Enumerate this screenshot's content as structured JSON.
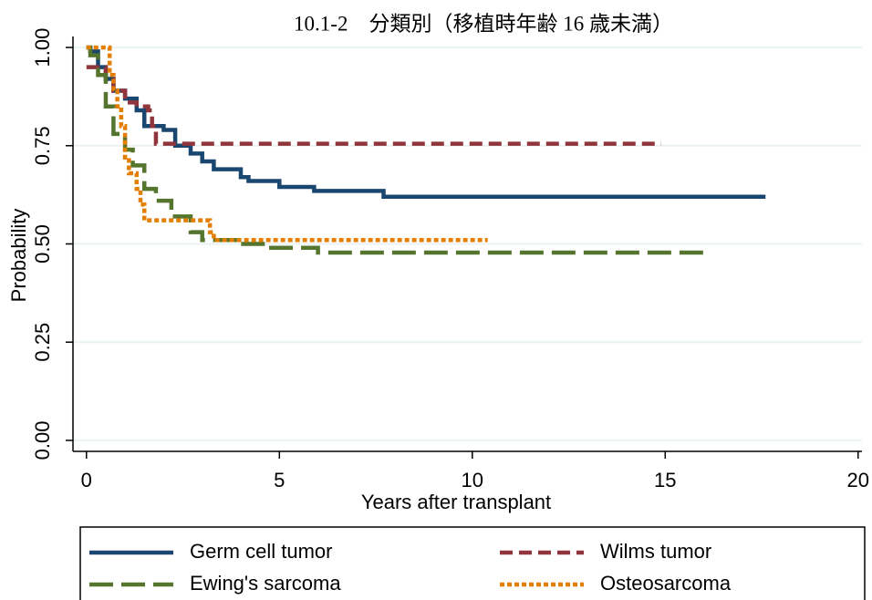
{
  "chart_data": {
    "type": "line",
    "step": true,
    "title": "10.1-2　分類別（移植時年齢 16 歳未満）",
    "x_label": "Years after transplant",
    "y_label": "Probability",
    "xlim": [
      -0.35,
      20.1
    ],
    "ylim": [
      -0.028,
      1.028
    ],
    "xticks": [
      0,
      5,
      10,
      15,
      20
    ],
    "yticks": [
      {
        "value": 0,
        "label": "0.00"
      },
      {
        "value": 0.25,
        "label": "0.25"
      },
      {
        "value": 0.5,
        "label": "0.50"
      },
      {
        "value": 0.75,
        "label": "0.75"
      },
      {
        "value": 1,
        "label": "1.00"
      }
    ],
    "grid": true,
    "series": [
      {
        "name": "Germ cell tumor",
        "color": "#1a476f",
        "dash": "solid",
        "x": [
          0,
          0.1,
          0.3,
          0.5,
          0.7,
          1.0,
          1.3,
          1.5,
          2.0,
          2.3,
          2.7,
          3.0,
          3.3,
          4.0,
          4.2,
          5.0,
          5.9,
          7.7,
          17.6
        ],
        "values": [
          1.0,
          0.99,
          0.95,
          0.92,
          0.89,
          0.87,
          0.84,
          0.8,
          0.79,
          0.75,
          0.73,
          0.71,
          0.69,
          0.67,
          0.66,
          0.645,
          0.635,
          0.62,
          0.62
        ]
      },
      {
        "name": "Wilms tumor",
        "color": "#90353b",
        "dash": "dash",
        "x": [
          0,
          0.3,
          0.5,
          0.7,
          1.0,
          1.3,
          1.6,
          1.7,
          1.8,
          14.9
        ],
        "values": [
          0.95,
          0.95,
          0.92,
          0.89,
          0.86,
          0.85,
          0.84,
          0.8,
          0.755,
          0.755
        ]
      },
      {
        "name": "Ewing's sarcoma",
        "color": "#55752f",
        "dash": "longdash",
        "x": [
          0,
          0.1,
          0.3,
          0.5,
          0.7,
          1.0,
          1.2,
          1.5,
          1.8,
          2.2,
          2.7,
          3.0,
          4.0,
          4.7,
          6.0,
          16.1
        ],
        "values": [
          1.0,
          0.98,
          0.93,
          0.85,
          0.78,
          0.74,
          0.7,
          0.64,
          0.61,
          0.57,
          0.53,
          0.51,
          0.5,
          0.49,
          0.478,
          0.478
        ]
      },
      {
        "name": "Osteosarcoma",
        "color": "#e37e00",
        "dash": "dot",
        "x": [
          0,
          0.5,
          0.6,
          0.7,
          0.8,
          0.9,
          1.0,
          1.1,
          1.3,
          1.4,
          1.5,
          3.2,
          3.3,
          10.4
        ],
        "values": [
          1.0,
          1.0,
          0.93,
          0.89,
          0.85,
          0.8,
          0.72,
          0.68,
          0.64,
          0.6,
          0.56,
          0.53,
          0.51,
          0.51
        ]
      }
    ]
  }
}
